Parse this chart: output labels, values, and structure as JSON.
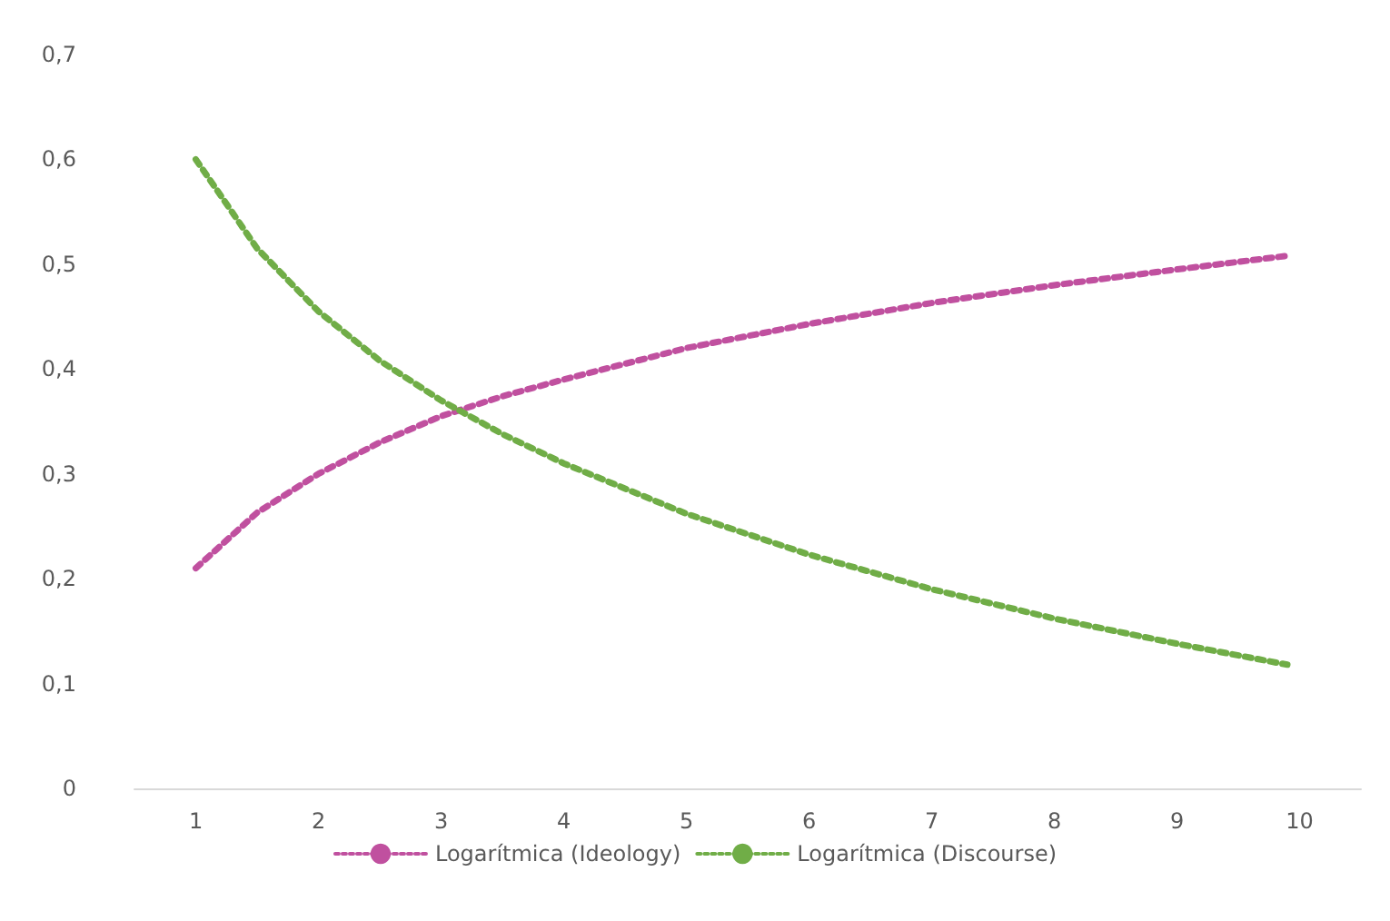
{
  "chart_data": {
    "type": "line",
    "line_style": "dotted",
    "marker": "none",
    "grid": false,
    "legend": "bottom",
    "xlim": [
      0.5,
      10.5
    ],
    "xticks": [
      1,
      2,
      3,
      4,
      5,
      6,
      7,
      8,
      9,
      10
    ],
    "ylim": [
      0,
      0.7
    ],
    "yticks": [
      0,
      {
        "value": 0.1,
        "label": "0,1"
      },
      {
        "value": 0.2,
        "label": "0,2"
      },
      {
        "value": 0.3,
        "label": "0,3"
      },
      {
        "value": 0.4,
        "label": "0,4"
      },
      {
        "value": 0.5,
        "label": "0,5"
      },
      {
        "value": 0.6,
        "label": "0,6"
      },
      {
        "value": 0.7,
        "label": "0,7"
      }
    ],
    "series": [
      {
        "name": "Logarítmica (Ideology)",
        "color": "#c0509f",
        "x": [
          1,
          1.5,
          2,
          2.5,
          3,
          3.5,
          4,
          5,
          6,
          7,
          8,
          9,
          9.9
        ],
        "values": [
          0.21,
          0.263,
          0.3,
          0.33,
          0.355,
          0.374,
          0.39,
          0.42,
          0.443,
          0.463,
          0.48,
          0.495,
          0.508
        ]
      },
      {
        "name": "Logarítmica (Discourse)",
        "color": "#70ad47",
        "x": [
          1,
          1.5,
          2,
          2.5,
          3,
          3.5,
          4,
          5,
          6,
          7,
          8,
          9,
          9.9
        ],
        "values": [
          0.6,
          0.515,
          0.455,
          0.408,
          0.37,
          0.338,
          0.31,
          0.262,
          0.223,
          0.19,
          0.162,
          0.138,
          0.118
        ]
      }
    ]
  }
}
